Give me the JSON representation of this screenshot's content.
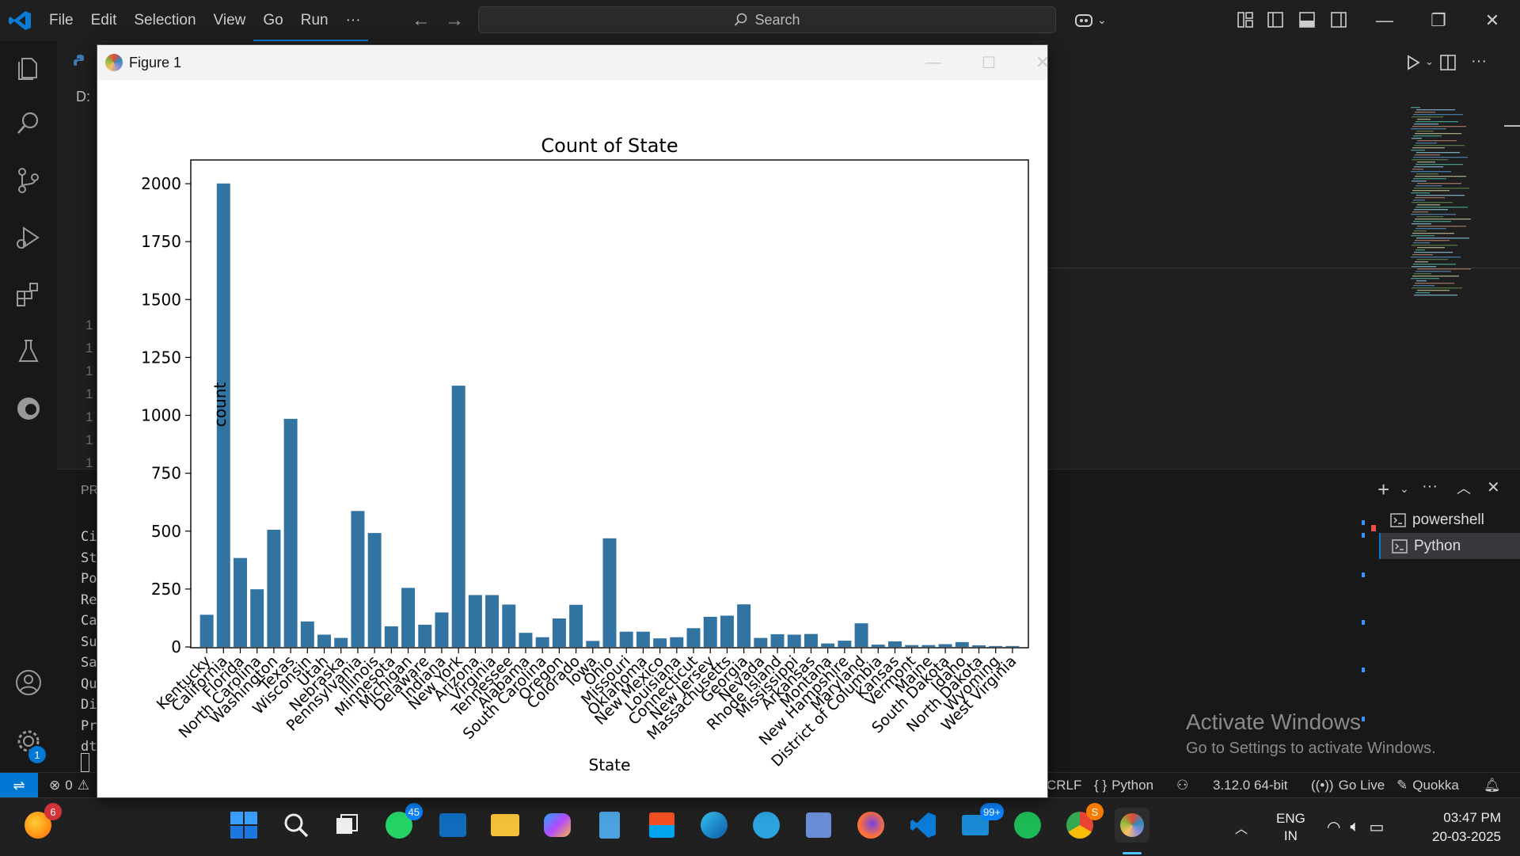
{
  "menu": {
    "file": "File",
    "edit": "Edit",
    "selection": "Selection",
    "view": "View",
    "go": "Go",
    "run": "Run",
    "more": "···"
  },
  "search": {
    "placeholder": "Search"
  },
  "figure_window": {
    "title": "Figure 1"
  },
  "editor_fragment": {
    "drive": "D:",
    "problems_tab": "PR",
    "gutter": [
      "1",
      "1",
      "1",
      "1",
      "1",
      "1",
      "1"
    ],
    "terminal_lines": [
      "Ci",
      "St",
      "Po",
      "Re",
      "Ca",
      "Su",
      "Sa",
      "Qu",
      "Di",
      "Pr",
      "dt"
    ]
  },
  "terminal_list": [
    {
      "label": "powershell"
    },
    {
      "label": "Python"
    }
  ],
  "watermark": {
    "line1": "Activate Windows",
    "line2": "Go to Settings to activate Windows."
  },
  "status": {
    "errors": "0",
    "eol": "CRLF",
    "language": "Python",
    "interpreter": "3.12.0 64-bit",
    "golive": "Go Live",
    "quokka": "Quokka"
  },
  "taskbar": {
    "badges": {
      "notifications": "6",
      "whatsapp": "45",
      "mail": "99+",
      "chrome": "S"
    },
    "lang": "ENG",
    "region": "IN",
    "time": "03:47 PM",
    "date": "20-03-2025"
  },
  "settings_badge": "1",
  "colors": {
    "bar": "#3274a1",
    "accent": "#0078d4",
    "statusbar": "#181818"
  },
  "chart_data": {
    "type": "bar",
    "title": "Count of State",
    "xlabel": "State",
    "ylabel": "count",
    "ylim": [
      0,
      2100
    ],
    "yticks": [
      0,
      250,
      500,
      750,
      1000,
      1250,
      1500,
      1750,
      2000
    ],
    "categories": [
      "Kentucky",
      "California",
      "Florida",
      "North Carolina",
      "Washington",
      "Texas",
      "Wisconsin",
      "Utah",
      "Nebraska",
      "Pennsylvania",
      "Illinois",
      "Minnesota",
      "Michigan",
      "Delaware",
      "Indiana",
      "New York",
      "Arizona",
      "Virginia",
      "Tennessee",
      "Alabama",
      "South Carolina",
      "Oregon",
      "Colorado",
      "Iowa",
      "Ohio",
      "Missouri",
      "Oklahoma",
      "New Mexico",
      "Louisiana",
      "Connecticut",
      "New Jersey",
      "Massachusetts",
      "Georgia",
      "Nevada",
      "Rhode Island",
      "Mississippi",
      "Arkansas",
      "Montana",
      "New Hampshire",
      "Maryland",
      "District of Columbia",
      "Kansas",
      "Vermont",
      "Maine",
      "South Dakota",
      "Idaho",
      "North Dakota",
      "Wyoming",
      "West Virginia"
    ],
    "values": [
      139,
      2001,
      384,
      249,
      506,
      985,
      110,
      53,
      39,
      587,
      492,
      89,
      255,
      96,
      149,
      1128,
      224,
      224,
      183,
      61,
      42,
      123,
      182,
      26,
      469,
      66,
      66,
      37,
      42,
      81,
      130,
      135,
      184,
      39,
      55,
      53,
      56,
      15,
      27,
      102,
      10,
      24,
      8,
      8,
      12,
      21,
      7,
      4,
      4
    ]
  }
}
